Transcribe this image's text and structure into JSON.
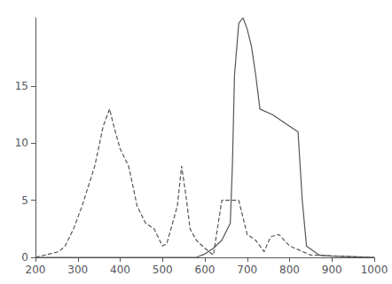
{
  "chart_data": {
    "type": "line",
    "series": [
      {
        "x": [
          200,
          580,
          600,
          620,
          640,
          660,
          665,
          670,
          680,
          690,
          700,
          710,
          720,
          730,
          760,
          780,
          800,
          820,
          830,
          840,
          870,
          900,
          1000
        ],
        "values": [
          0,
          0,
          0.3,
          0.8,
          1.5,
          3.0,
          8.0,
          16.0,
          20.5,
          21.0,
          20.0,
          18.5,
          16.0,
          13.0,
          12.5,
          12.0,
          11.5,
          11.0,
          5.0,
          1.0,
          0.2,
          0.1,
          0
        ],
        "color": "#555555",
        "line_style": "solid"
      },
      {
        "x": [
          200,
          255,
          270,
          290,
          310,
          340,
          360,
          375,
          385,
          400,
          420,
          440,
          460,
          480,
          500,
          510,
          520,
          535,
          545,
          555,
          565,
          580,
          600,
          620,
          640,
          650,
          660,
          680,
          700,
          720,
          740,
          755,
          775,
          800,
          850,
          1000
        ],
        "values": [
          0,
          0.5,
          1.0,
          2.5,
          4.5,
          8.0,
          11.5,
          13.0,
          11.5,
          9.5,
          8.0,
          4.5,
          3.0,
          2.5,
          1.0,
          1.2,
          2.5,
          4.5,
          8.0,
          5.5,
          2.5,
          1.5,
          0.8,
          0.2,
          5.0,
          5.0,
          5.0,
          5.0,
          2.0,
          1.5,
          0.5,
          1.8,
          2.0,
          1.0,
          0.2,
          0
        ],
        "color": "#555555",
        "line_style": "dashed"
      }
    ],
    "xlim": [
      200,
      1000
    ],
    "ylim": [
      0,
      21
    ],
    "xticks": [
      200,
      300,
      400,
      500,
      600,
      700,
      800,
      900,
      1000
    ],
    "yticks": [
      0,
      5,
      10,
      15
    ],
    "grid": false
  }
}
